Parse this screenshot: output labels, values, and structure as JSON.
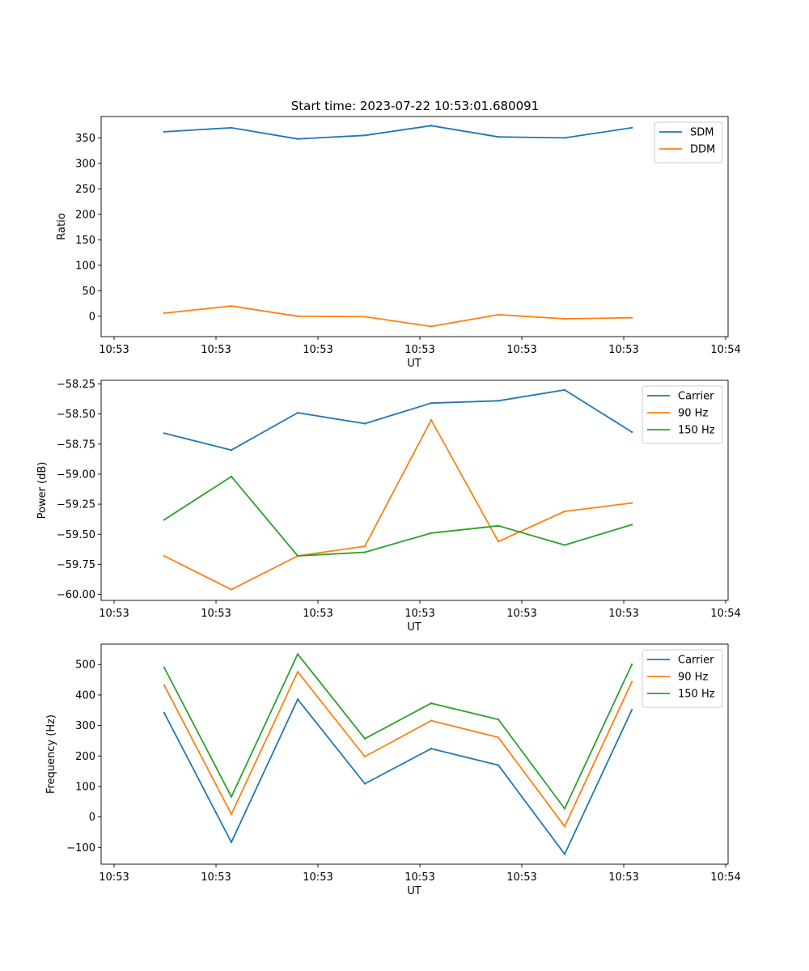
{
  "figure": {
    "title": "Start time: 2023-07-22 10:53:01.680091"
  },
  "chart_data": [
    {
      "type": "line",
      "xlabel": "UT",
      "ylabel": "Ratio",
      "x_tick_labels": [
        "10:53",
        "10:53",
        "10:53",
        "10:53",
        "10:53",
        "10:53",
        "10:54"
      ],
      "y_ticks": [
        0,
        50,
        100,
        150,
        200,
        250,
        300,
        350
      ],
      "y_tick_labels": [
        "0",
        "50",
        "100",
        "150",
        "200",
        "250",
        "300",
        "350"
      ],
      "ylim": [
        -40,
        392
      ],
      "legend_position": "top-right",
      "series": [
        {
          "name": "SDM",
          "color": "#1f77b4",
          "values": [
            362,
            370,
            348,
            355,
            374,
            352,
            350,
            370
          ]
        },
        {
          "name": "DDM",
          "color": "#ff7f0e",
          "values": [
            6,
            20,
            0,
            -1,
            -20,
            3,
            -5,
            -3
          ]
        }
      ]
    },
    {
      "type": "line",
      "xlabel": "UT",
      "ylabel": "Power (dB)",
      "x_tick_labels": [
        "10:53",
        "10:53",
        "10:53",
        "10:53",
        "10:53",
        "10:53",
        "10:54"
      ],
      "y_ticks": [
        -60.0,
        -59.75,
        -59.5,
        -59.25,
        -59.0,
        -58.75,
        -58.5,
        -58.25
      ],
      "y_tick_labels": [
        "−60.00",
        "−59.75",
        "−59.50",
        "−59.25",
        "−59.00",
        "−58.75",
        "−58.50",
        "−58.25"
      ],
      "ylim": [
        -60.05,
        -58.22
      ],
      "legend_position": "top-right",
      "series": [
        {
          "name": "Carrier",
          "color": "#1f77b4",
          "values": [
            -58.66,
            -58.8,
            -58.49,
            -58.58,
            -58.41,
            -58.39,
            -58.3,
            -58.65
          ]
        },
        {
          "name": "90 Hz",
          "color": "#ff7f0e",
          "values": [
            -59.68,
            -59.96,
            -59.68,
            -59.6,
            -58.55,
            -59.56,
            -59.31,
            -59.24
          ]
        },
        {
          "name": "150 Hz",
          "color": "#2ca02c",
          "values": [
            -59.38,
            -59.02,
            -59.68,
            -59.65,
            -59.49,
            -59.43,
            -59.59,
            -59.42
          ]
        }
      ]
    },
    {
      "type": "line",
      "xlabel": "UT",
      "ylabel": "Frequency (Hz)",
      "x_tick_labels": [
        "10:53",
        "10:53",
        "10:53",
        "10:53",
        "10:53",
        "10:53",
        "10:54"
      ],
      "y_ticks": [
        -100,
        0,
        100,
        200,
        300,
        400,
        500
      ],
      "y_tick_labels": [
        "−100",
        "0",
        "100",
        "200",
        "300",
        "400",
        "500"
      ],
      "ylim": [
        -155,
        567
      ],
      "legend_position": "top-right",
      "series": [
        {
          "name": "Carrier",
          "color": "#1f77b4",
          "values": [
            341,
            -83,
            386,
            109,
            224,
            170,
            -122,
            351
          ]
        },
        {
          "name": "90 Hz",
          "color": "#ff7f0e",
          "values": [
            432,
            9,
            476,
            198,
            316,
            261,
            -31,
            443
          ]
        },
        {
          "name": "150 Hz",
          "color": "#2ca02c",
          "values": [
            490,
            66,
            534,
            257,
            373,
            320,
            27,
            500
          ]
        }
      ]
    }
  ]
}
